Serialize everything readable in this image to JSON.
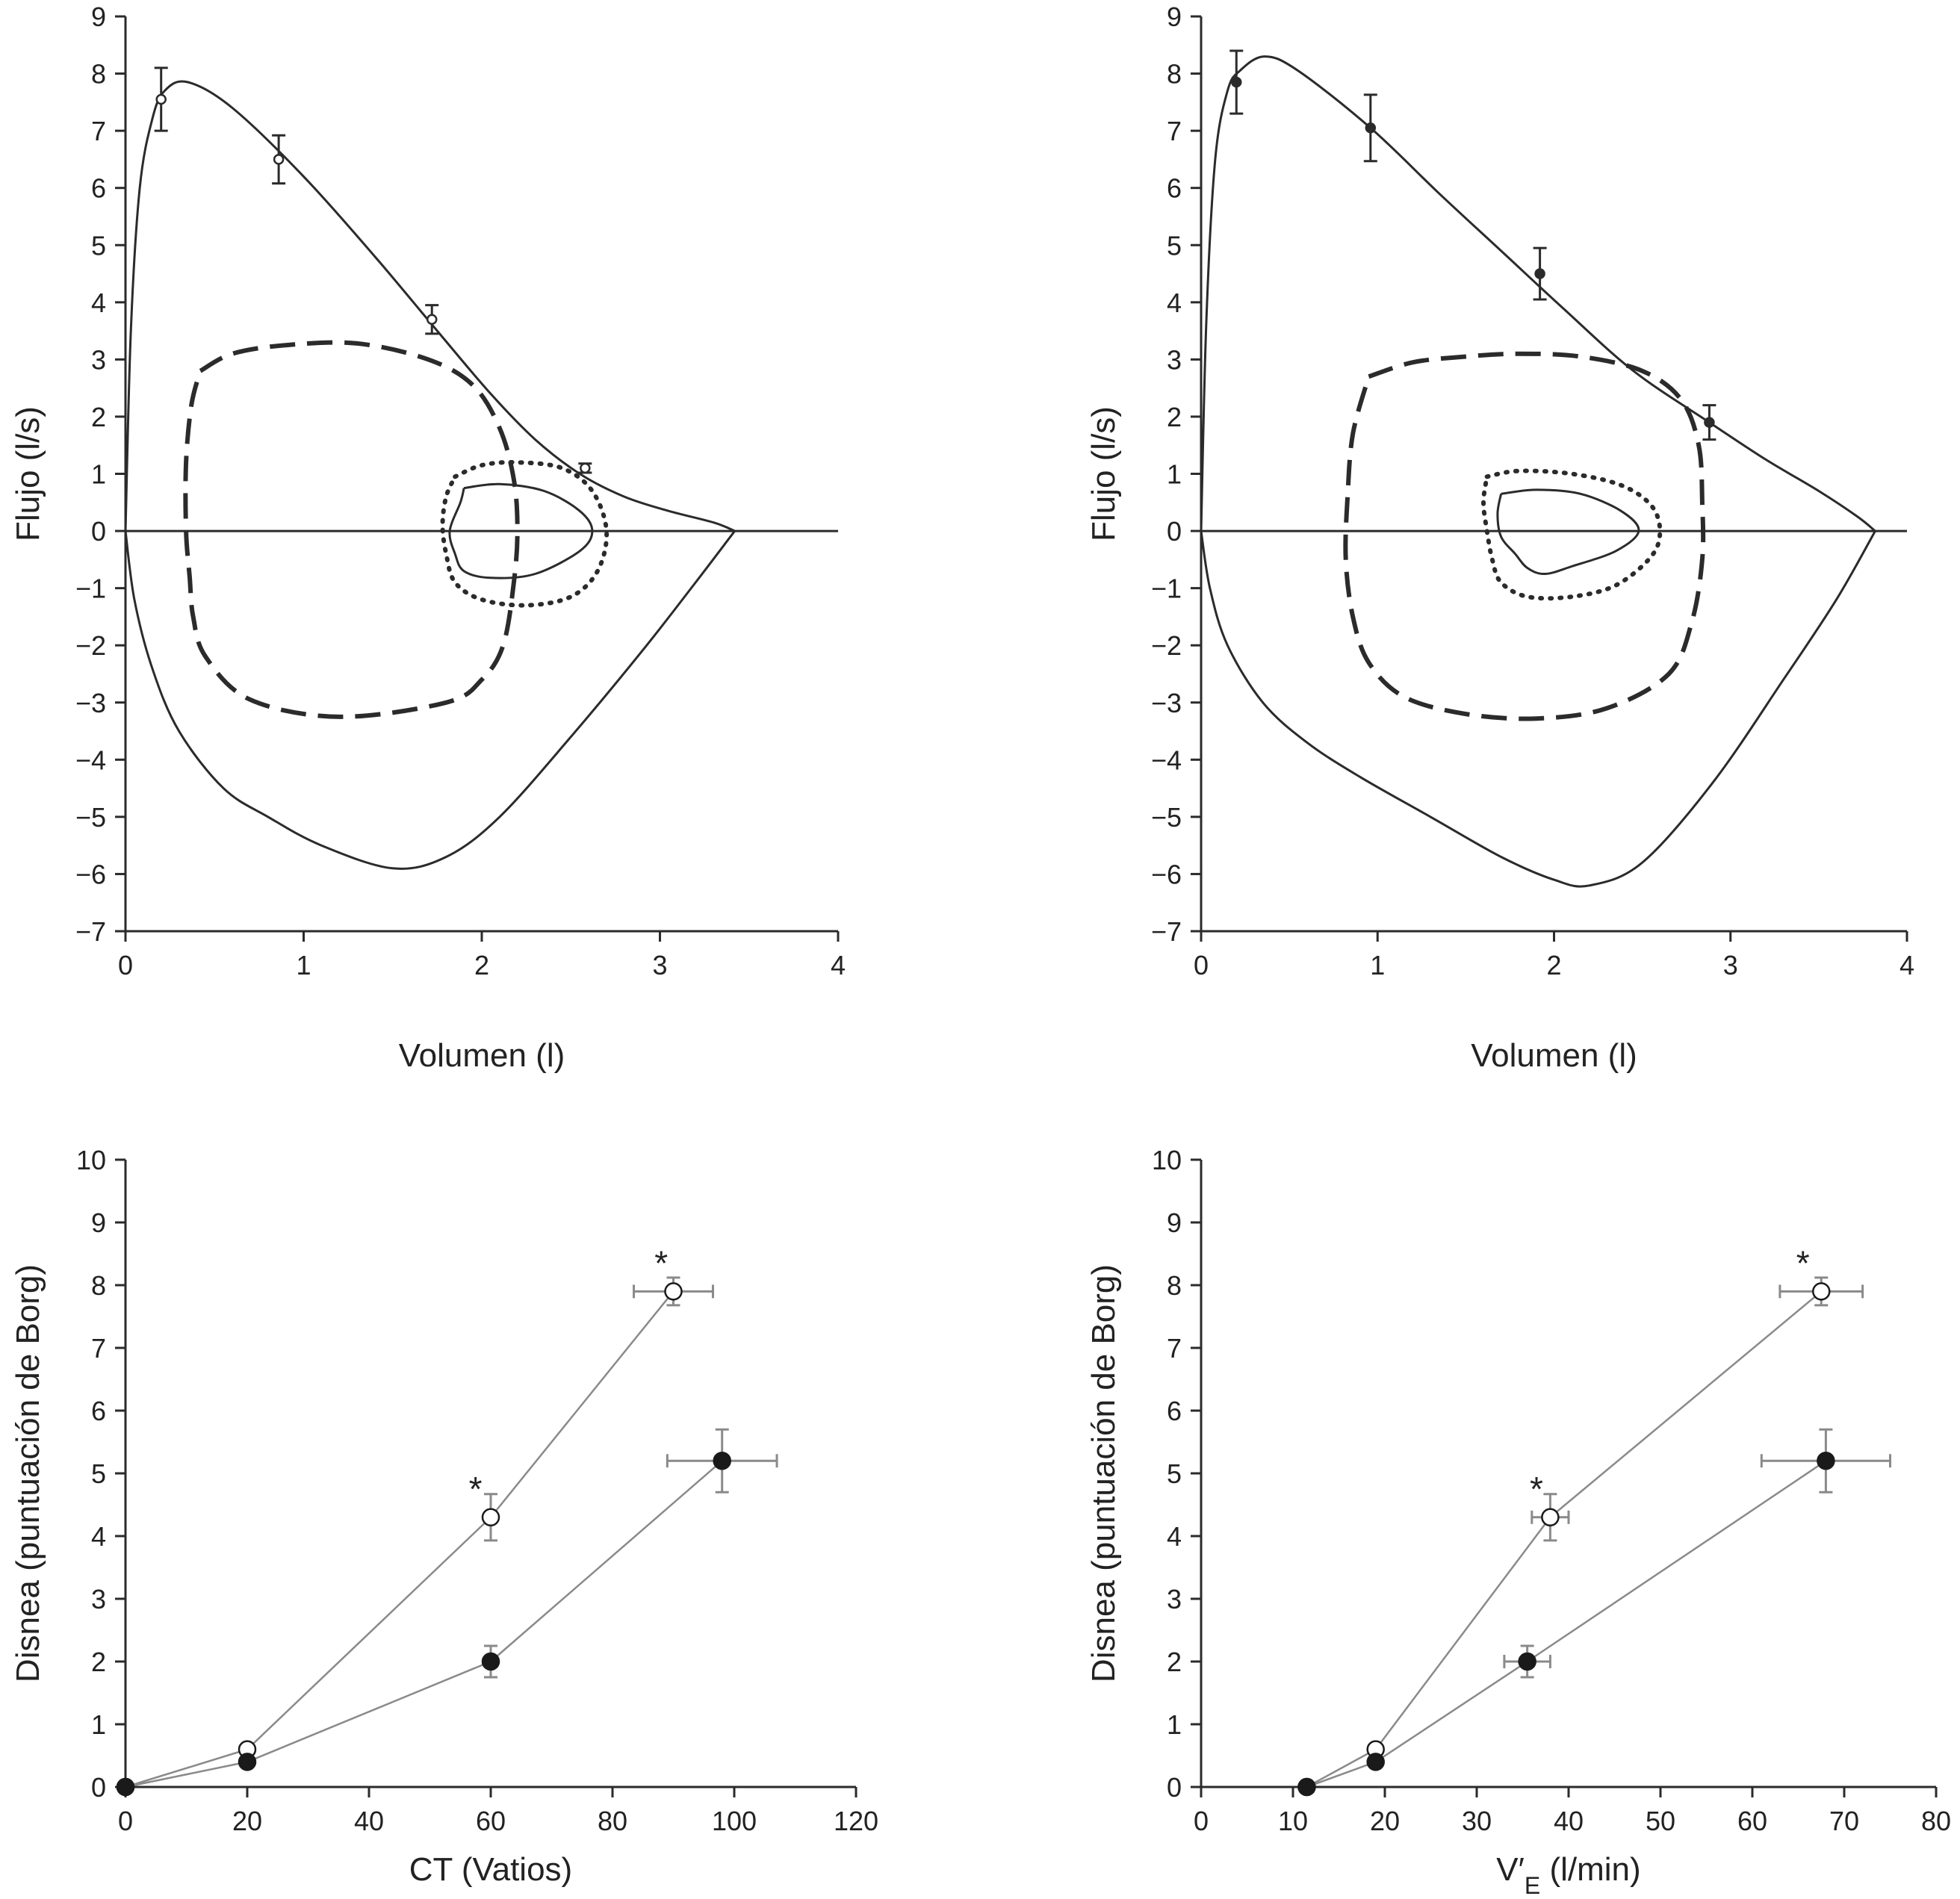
{
  "chart_data": [
    {
      "type": "line",
      "panel": "top-left",
      "xlabel": "Volumen (l)",
      "ylabel": "Flujo (l/s)",
      "xlim": [
        0,
        4
      ],
      "ylim": [
        -7,
        9
      ],
      "xticks": [
        "0",
        "1",
        "2",
        "3",
        "4"
      ],
      "yticks": [
        "9",
        "8",
        "7",
        "6",
        "5",
        "4",
        "3",
        "2",
        "1",
        "0",
        "−1",
        "−2",
        "−3",
        "−4",
        "−5",
        "−6",
        "−7"
      ],
      "series": [
        {
          "style": "solid",
          "x": [
            0,
            0.03,
            0.08,
            0.15,
            0.22,
            0.35,
            0.6,
            1.0,
            1.4,
            1.75,
            2.05,
            2.3,
            2.55,
            2.8,
            3.05,
            3.3,
            3.42
          ],
          "y": [
            0,
            3.5,
            6.0,
            7.2,
            7.7,
            7.85,
            7.4,
            6.2,
            4.8,
            3.5,
            2.4,
            1.6,
            1.0,
            0.6,
            0.35,
            0.15,
            0
          ]
        },
        {
          "style": "solid",
          "x": [
            0,
            0.05,
            0.15,
            0.3,
            0.55,
            0.8,
            1.1,
            1.5,
            1.8,
            2.1,
            2.5,
            2.9,
            3.2,
            3.42
          ],
          "y": [
            0,
            -1.2,
            -2.4,
            -3.5,
            -4.5,
            -5.0,
            -5.5,
            -5.9,
            -5.7,
            -5.0,
            -3.6,
            -2.1,
            -0.9,
            0
          ]
        },
        {
          "style": "dashed",
          "x": [
            0.42,
            0.6,
            0.9,
            1.3,
            1.7,
            1.95,
            2.1,
            2.18,
            2.2,
            2.18,
            2.12,
            2.0,
            1.8,
            1.2,
            0.7,
            0.45,
            0.38,
            0.36,
            0.34,
            0.34,
            0.37,
            0.42
          ],
          "y": [
            2.8,
            3.1,
            3.25,
            3.28,
            3.0,
            2.55,
            1.8,
            0.9,
            0,
            -0.9,
            -2.0,
            -2.6,
            -3.0,
            -3.25,
            -2.95,
            -2.2,
            -1.5,
            -0.8,
            0,
            1.2,
            2.2,
            2.8
          ]
        },
        {
          "style": "dotted",
          "x": [
            1.85,
            2.0,
            2.2,
            2.45,
            2.62,
            2.7,
            2.65,
            2.5,
            2.25,
            2.0,
            1.85,
            1.8,
            1.78,
            1.8,
            1.85
          ],
          "y": [
            0.95,
            1.15,
            1.2,
            1.1,
            0.7,
            0,
            -0.7,
            -1.15,
            -1.3,
            -1.2,
            -0.9,
            -0.4,
            0.1,
            0.6,
            0.95
          ]
        },
        {
          "style": "solid",
          "x": [
            1.9,
            2.1,
            2.35,
            2.55,
            2.62,
            2.55,
            2.3,
            2.05,
            1.9,
            1.85,
            1.82,
            1.88,
            1.9
          ],
          "y": [
            0.75,
            0.82,
            0.7,
            0.35,
            0,
            -0.35,
            -0.75,
            -0.82,
            -0.7,
            -0.4,
            0,
            0.5,
            0.75
          ]
        }
      ],
      "points": {
        "marker": "open",
        "x": [
          0.2,
          0.86,
          1.72,
          2.58
        ],
        "y": [
          7.55,
          6.5,
          3.7,
          1.1
        ],
        "err": [
          0.55,
          0.42,
          0.25,
          0.08
        ]
      }
    },
    {
      "type": "line",
      "panel": "top-right",
      "xlabel": "Volumen (l)",
      "ylabel": "Flujo (l/s)",
      "xlim": [
        0,
        4
      ],
      "ylim": [
        -7,
        9
      ],
      "xticks": [
        "0",
        "1",
        "2",
        "3",
        "4"
      ],
      "yticks": [
        "9",
        "8",
        "7",
        "6",
        "5",
        "4",
        "3",
        "2",
        "1",
        "0",
        "−1",
        "−2",
        "−3",
        "−4",
        "−5",
        "−6",
        "−7"
      ],
      "series": [
        {
          "style": "solid",
          "x": [
            0,
            0.03,
            0.08,
            0.15,
            0.22,
            0.36,
            0.55,
            0.96,
            1.35,
            1.7,
            2.05,
            2.45,
            2.88,
            3.2,
            3.5,
            3.72,
            3.82
          ],
          "y": [
            0,
            3.7,
            6.5,
            7.7,
            8.05,
            8.3,
            8.05,
            7.05,
            5.9,
            4.9,
            3.9,
            2.8,
            1.9,
            1.25,
            0.7,
            0.25,
            0
          ]
        },
        {
          "style": "solid",
          "x": [
            0,
            0.05,
            0.15,
            0.35,
            0.6,
            0.9,
            1.3,
            1.7,
            2.0,
            2.2,
            2.5,
            2.9,
            3.3,
            3.6,
            3.82
          ],
          "y": [
            0,
            -1.0,
            -2.0,
            -3.0,
            -3.7,
            -4.3,
            -5.0,
            -5.7,
            -6.1,
            -6.2,
            -5.8,
            -4.4,
            -2.6,
            -1.2,
            0
          ]
        },
        {
          "style": "dashed",
          "x": [
            0.95,
            1.2,
            1.5,
            1.8,
            2.15,
            2.5,
            2.72,
            2.82,
            2.84,
            2.84,
            2.78,
            2.65,
            2.3,
            1.9,
            1.5,
            1.15,
            0.95,
            0.86,
            0.82,
            0.83,
            0.86,
            0.95
          ],
          "y": [
            2.7,
            2.95,
            3.05,
            3.1,
            3.05,
            2.8,
            2.3,
            1.5,
            0.5,
            -0.5,
            -1.6,
            -2.5,
            -3.1,
            -3.28,
            -3.2,
            -2.9,
            -2.3,
            -1.5,
            -0.5,
            0.6,
            1.7,
            2.7
          ]
        },
        {
          "style": "dotted",
          "x": [
            1.62,
            1.8,
            2.1,
            2.38,
            2.55,
            2.6,
            2.55,
            2.35,
            2.1,
            1.85,
            1.7,
            1.65,
            1.62,
            1.6,
            1.62
          ],
          "y": [
            0.95,
            1.05,
            1.0,
            0.8,
            0.45,
            0,
            -0.45,
            -0.95,
            -1.15,
            -1.15,
            -0.9,
            -0.5,
            0,
            0.5,
            0.95
          ]
        },
        {
          "style": "solid",
          "x": [
            1.7,
            1.9,
            2.15,
            2.38,
            2.48,
            2.35,
            2.1,
            1.95,
            1.85,
            1.78,
            1.7,
            1.68,
            1.7
          ],
          "y": [
            0.65,
            0.72,
            0.65,
            0.35,
            0,
            -0.35,
            -0.62,
            -0.75,
            -0.65,
            -0.4,
            -0.1,
            0.3,
            0.65
          ]
        }
      ],
      "points": {
        "marker": "filled",
        "x": [
          0.2,
          0.96,
          1.92,
          2.88
        ],
        "y": [
          7.85,
          7.05,
          4.5,
          1.9
        ],
        "err": [
          0.55,
          0.58,
          0.45,
          0.3
        ]
      }
    },
    {
      "type": "scatter",
      "panel": "bottom-left",
      "xlabel": "CT (Vatios)",
      "ylabel": "Disnea (puntuación de Borg)",
      "xlim": [
        0,
        120
      ],
      "ylim": [
        0,
        10
      ],
      "xticks": [
        "0",
        "20",
        "40",
        "60",
        "80",
        "100",
        "120"
      ],
      "yticks": [
        "10",
        "9",
        "8",
        "7",
        "6",
        "5",
        "4",
        "3",
        "2",
        "1",
        "0"
      ],
      "series": [
        {
          "marker": "open",
          "x": [
            0,
            20,
            60,
            90
          ],
          "y": [
            0,
            0.6,
            4.3,
            7.9
          ],
          "xerr": [
            0,
            0,
            0,
            6.5
          ],
          "yerr": [
            0,
            0,
            0.37,
            0.22
          ]
        },
        {
          "marker": "filled",
          "x": [
            0,
            20,
            60,
            98
          ],
          "y": [
            0,
            0.4,
            2.0,
            5.2
          ],
          "xerr": [
            0,
            0,
            0,
            9
          ],
          "yerr": [
            0,
            0,
            0.25,
            0.5
          ]
        }
      ],
      "annotations": [
        {
          "text": "*",
          "x": 57.5,
          "y": 4.75
        },
        {
          "text": "*",
          "x": 88,
          "y": 8.35
        }
      ]
    },
    {
      "type": "scatter",
      "panel": "bottom-right",
      "xlabel": "V′",
      "xlabel_sub": "E",
      "xlabel_rest": " (l/min)",
      "ylabel": "Disnea (puntuación de Borg)",
      "xlim": [
        0,
        80
      ],
      "ylim": [
        0,
        10
      ],
      "xticks": [
        "0",
        "10",
        "20",
        "30",
        "40",
        "50",
        "60",
        "70",
        "80"
      ],
      "yticks": [
        "10",
        "9",
        "8",
        "7",
        "6",
        "5",
        "4",
        "3",
        "2",
        "1",
        "0"
      ],
      "series": [
        {
          "marker": "open",
          "x": [
            11.5,
            19,
            38,
            67.5
          ],
          "y": [
            0,
            0.6,
            4.3,
            7.9
          ],
          "xerr": [
            0,
            0,
            2,
            4.5
          ],
          "yerr": [
            0,
            0,
            0.37,
            0.22
          ]
        },
        {
          "marker": "filled",
          "x": [
            11.5,
            19,
            35.5,
            68
          ],
          "y": [
            0,
            0.4,
            2.0,
            5.2
          ],
          "xerr": [
            0,
            0,
            2.5,
            7
          ],
          "yerr": [
            0,
            0,
            0.25,
            0.5
          ]
        }
      ],
      "annotations": [
        {
          "text": "*",
          "x": 36.5,
          "y": 4.75
        },
        {
          "text": "*",
          "x": 65.5,
          "y": 8.35
        }
      ]
    }
  ]
}
